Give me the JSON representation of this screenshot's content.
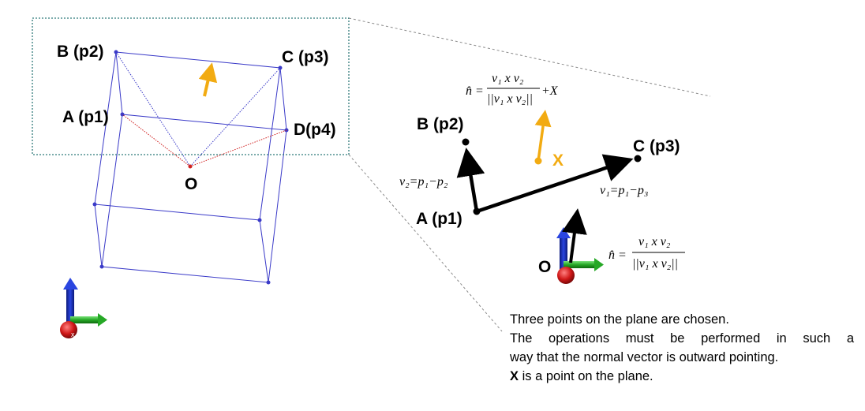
{
  "left": {
    "labels": {
      "A": "A (p1)",
      "B": "B (p2)",
      "C": "C (p3)",
      "D": "D(p4)",
      "O": "O"
    },
    "axis_x_label": "x"
  },
  "right": {
    "labels": {
      "A": "A (p1)",
      "B": "B (p2)",
      "C": "C (p3)",
      "X": "X",
      "O": "O"
    },
    "formulas": {
      "n_hat": "n̂",
      "eq": "=",
      "num": "v₁ x v₂",
      "den": "||v₁ x v₂||",
      "plus_x": "+X",
      "v1_def": "v₁=p₁−p₃",
      "v2_def": "v₂=p₁−p₂"
    }
  },
  "caption": {
    "line1": "Three points on the plane are chosen.",
    "line2": "The operations must be performed in such a",
    "line3": "way that the normal vector is outward pointing.",
    "line4_bold": "X",
    "line4_rest": " is a point on the plane."
  },
  "colors": {
    "box": "#3a3ac8",
    "dot_red": "#d02020",
    "arrow_yellow": "#f2ab12",
    "axis_blue": "#1a2ec8",
    "axis_green": "#2ab82a",
    "axis_red": "#d01818",
    "callout": "#2f7a7a"
  }
}
